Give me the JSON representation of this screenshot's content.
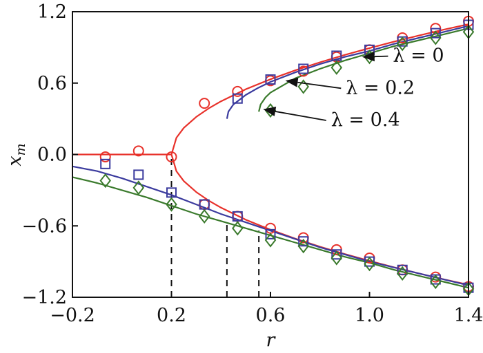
{
  "chart_data": {
    "type": "line",
    "title": "",
    "xlabel": "r",
    "ylabel": "x_m",
    "xlim": [
      -0.2,
      1.4
    ],
    "ylim": [
      -1.2,
      1.2
    ],
    "xticks": [
      -0.2,
      0.2,
      0.6,
      1.0,
      1.4
    ],
    "xtick_labels": [
      "−0.2",
      "0.2",
      "0.6",
      "1.0",
      "1.4"
    ],
    "yticks": [
      1.2,
      0.6,
      0.0,
      -0.6,
      -1.2
    ],
    "ytick_labels": [
      "1.2",
      "0.6",
      "0.0",
      "−0.6",
      "−1.2"
    ],
    "grid": false,
    "legend": "none (arrow annotations)",
    "annotations": [
      {
        "text": "λ = 0",
        "series": "lambda_0",
        "arrow_to": [
          0.97,
          0.82
        ],
        "text_at": [
          1.22,
          0.78
        ]
      },
      {
        "text": "λ = 0.2",
        "series": "lambda_0.2",
        "arrow_to": [
          0.66,
          0.62
        ],
        "text_at": [
          1.03,
          0.51
        ]
      },
      {
        "text": "λ = 0.4",
        "series": "lambda_0.4",
        "arrow_to": [
          0.57,
          0.38
        ],
        "text_at": [
          0.97,
          0.24
        ]
      }
    ],
    "dashed_vlines": [
      {
        "x": 0.2,
        "y_from": -1.2,
        "y_to": -0.02
      },
      {
        "x": 0.424,
        "y_from": -1.2,
        "y_to": -0.58
      },
      {
        "x": 0.553,
        "y_from": -1.2,
        "y_to": -0.64
      }
    ],
    "series": [
      {
        "name": "λ = 0",
        "color": "#e8312a",
        "marker": "circle",
        "curve_upper": {
          "r": [
            0.2,
            0.22,
            0.25,
            0.3,
            0.35,
            0.4,
            0.5,
            0.6,
            0.7,
            0.8,
            0.9,
            1.0,
            1.1,
            1.2,
            1.3,
            1.4
          ],
          "x": [
            0.0,
            0.141,
            0.224,
            0.316,
            0.387,
            0.447,
            0.548,
            0.632,
            0.707,
            0.775,
            0.837,
            0.894,
            0.949,
            1.0,
            1.049,
            1.095
          ]
        },
        "curve_flat": {
          "r": [
            -0.2,
            0.2
          ],
          "x": [
            0.0,
            0.0
          ]
        },
        "curve_lower": {
          "r": [
            0.2,
            0.22,
            0.25,
            0.3,
            0.35,
            0.4,
            0.5,
            0.6,
            0.7,
            0.8,
            0.9,
            1.0,
            1.1,
            1.2,
            1.3,
            1.4
          ],
          "x": [
            0.0,
            -0.141,
            -0.224,
            -0.316,
            -0.387,
            -0.447,
            -0.548,
            -0.632,
            -0.707,
            -0.775,
            -0.837,
            -0.894,
            -0.949,
            -1.0,
            -1.049,
            -1.095
          ]
        },
        "points_upper": {
          "r": [
            0.333,
            0.467,
            0.6,
            0.733,
            0.867,
            1.0,
            1.133,
            1.267,
            1.4
          ],
          "x": [
            0.43,
            0.53,
            0.62,
            0.7,
            0.82,
            0.88,
            0.98,
            1.06,
            1.12
          ]
        },
        "points_lower": {
          "r": [
            -0.067,
            0.067,
            0.2,
            0.333,
            0.467,
            0.6,
            0.733,
            0.867,
            1.0,
            1.133,
            1.267,
            1.4
          ],
          "x": [
            -0.02,
            0.03,
            -0.02,
            -0.42,
            -0.52,
            -0.62,
            -0.7,
            -0.8,
            -0.87,
            -0.97,
            -1.03,
            -1.11
          ]
        }
      },
      {
        "name": "λ = 0.2",
        "color": "#3b3b9e",
        "marker": "square",
        "curve_upper": {
          "r": [
            0.424,
            0.43,
            0.45,
            0.5,
            0.55,
            0.6,
            0.7,
            0.8,
            0.9,
            1.0,
            1.1,
            1.2,
            1.3,
            1.4
          ],
          "x": [
            0.3,
            0.36,
            0.42,
            0.5,
            0.56,
            0.61,
            0.69,
            0.76,
            0.82,
            0.87,
            0.93,
            0.98,
            1.03,
            1.08
          ]
        },
        "curve_lower": {
          "r": [
            -0.2,
            -0.1,
            0.0,
            0.1,
            0.2,
            0.3,
            0.4,
            0.5,
            0.6,
            0.7,
            0.8,
            0.9,
            1.0,
            1.1,
            1.2,
            1.3,
            1.4
          ],
          "x": [
            -0.1,
            -0.14,
            -0.2,
            -0.27,
            -0.34,
            -0.42,
            -0.5,
            -0.57,
            -0.64,
            -0.71,
            -0.78,
            -0.84,
            -0.9,
            -0.95,
            -1.0,
            -1.05,
            -1.1
          ]
        },
        "points_upper": {
          "r": [
            0.467,
            0.6,
            0.733,
            0.867,
            1.0,
            1.133,
            1.267,
            1.4
          ],
          "x": [
            0.47,
            0.63,
            0.72,
            0.83,
            0.88,
            0.95,
            1.02,
            1.09
          ]
        },
        "points_lower": {
          "r": [
            -0.067,
            0.067,
            0.2,
            0.333,
            0.467,
            0.6,
            0.733,
            0.867,
            1.0,
            1.133,
            1.267,
            1.4
          ],
          "x": [
            -0.08,
            -0.17,
            -0.32,
            -0.42,
            -0.52,
            -0.67,
            -0.73,
            -0.84,
            -0.9,
            -0.97,
            -1.05,
            -1.12
          ]
        }
      },
      {
        "name": "λ = 0.4",
        "color": "#3a7a2c",
        "marker": "diamond",
        "curve_upper": {
          "r": [
            0.553,
            0.56,
            0.58,
            0.6,
            0.65,
            0.7,
            0.8,
            0.9,
            1.0,
            1.1,
            1.2,
            1.3,
            1.4
          ],
          "x": [
            0.36,
            0.42,
            0.48,
            0.52,
            0.58,
            0.64,
            0.72,
            0.79,
            0.85,
            0.91,
            0.96,
            1.01,
            1.06
          ]
        },
        "curve_lower": {
          "r": [
            -0.2,
            -0.1,
            0.0,
            0.1,
            0.2,
            0.3,
            0.4,
            0.5,
            0.6,
            0.7,
            0.8,
            0.9,
            1.0,
            1.1,
            1.2,
            1.3,
            1.4
          ],
          "x": [
            -0.19,
            -0.24,
            -0.3,
            -0.36,
            -0.43,
            -0.5,
            -0.56,
            -0.62,
            -0.68,
            -0.74,
            -0.8,
            -0.86,
            -0.91,
            -0.97,
            -1.02,
            -1.07,
            -1.12
          ]
        },
        "points_upper": {
          "r": [
            0.6,
            0.733,
            0.867,
            1.0,
            1.133,
            1.267,
            1.4
          ],
          "x": [
            0.37,
            0.57,
            0.73,
            0.82,
            0.93,
            0.98,
            1.03
          ]
        },
        "points_lower": {
          "r": [
            -0.067,
            0.067,
            0.2,
            0.333,
            0.467,
            0.6,
            0.733,
            0.867,
            1.0,
            1.133,
            1.267,
            1.4
          ],
          "x": [
            -0.22,
            -0.28,
            -0.42,
            -0.52,
            -0.62,
            -0.72,
            -0.77,
            -0.87,
            -0.92,
            -1.0,
            -1.07,
            -1.13
          ]
        }
      }
    ]
  }
}
